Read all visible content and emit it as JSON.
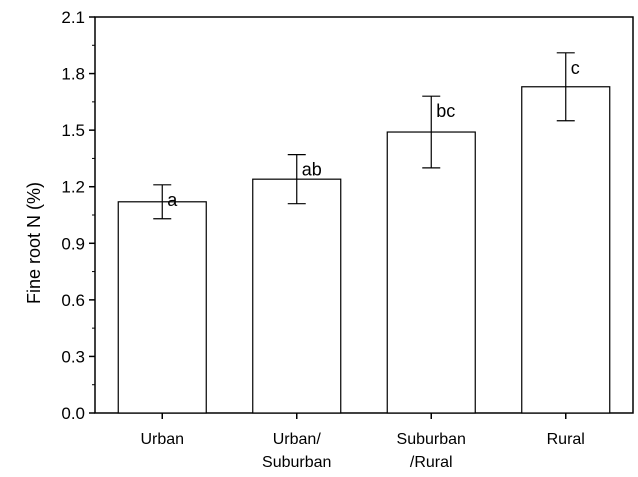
{
  "chart_data": {
    "type": "bar",
    "title": "",
    "xlabel": "",
    "ylabel": "Fine root N (%)",
    "ylim": [
      0.0,
      2.1
    ],
    "yticks": [
      "0.0",
      "0.3",
      "0.6",
      "0.9",
      "1.2",
      "1.5",
      "1.8",
      "2.1"
    ],
    "categories": [
      [
        "Urban"
      ],
      [
        "Urban/",
        "Suburban"
      ],
      [
        "Suburban",
        "/Rural"
      ],
      [
        "Rural"
      ]
    ],
    "values": [
      1.12,
      1.24,
      1.49,
      1.73
    ],
    "error_upper": [
      1.21,
      1.37,
      1.68,
      1.91
    ],
    "error_lower": [
      1.03,
      1.11,
      1.3,
      1.55
    ],
    "significance_labels": [
      "a",
      "ab",
      "bc",
      "c"
    ],
    "bar_fill": "#ffffff",
    "bar_stroke": "#000000",
    "grid": false,
    "legend": "none"
  }
}
